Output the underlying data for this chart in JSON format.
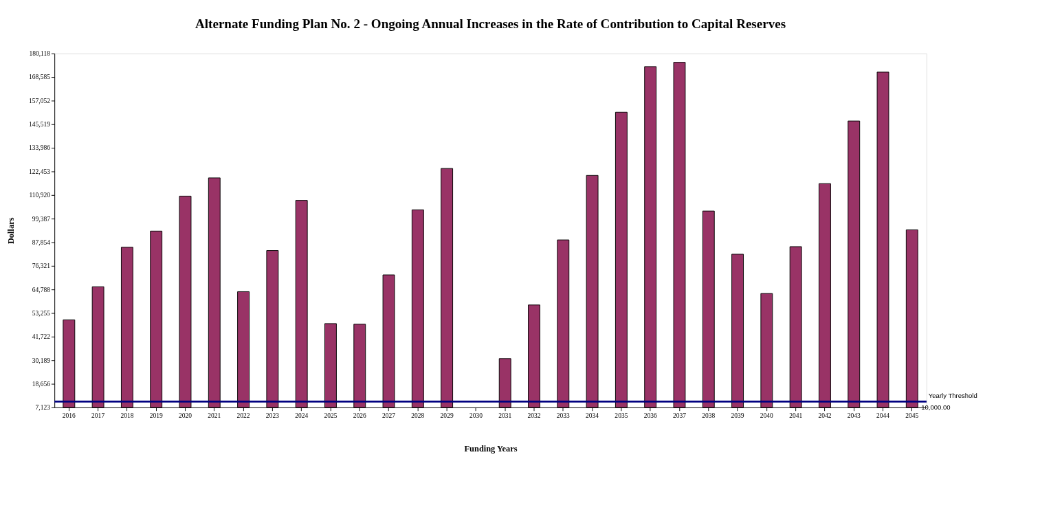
{
  "chart_data": {
    "type": "bar",
    "title": "Alternate Funding Plan No. 2 - Ongoing Annual Increases in  the Rate of Contribution to Capital Reserves",
    "xlabel": "Funding Years",
    "ylabel": "Dollars",
    "categories": [
      "2016",
      "2017",
      "2018",
      "2019",
      "2020",
      "2021",
      "2022",
      "2023",
      "2024",
      "2025",
      "2026",
      "2027",
      "2028",
      "2029",
      "2030",
      "2031",
      "2032",
      "2033",
      "2034",
      "2035",
      "2036",
      "2037",
      "2038",
      "2039",
      "2040",
      "2041",
      "2042",
      "2043",
      "2044",
      "2045"
    ],
    "values": [
      49900,
      66100,
      85400,
      93300,
      110400,
      119300,
      63700,
      83800,
      108300,
      48100,
      47800,
      71900,
      103700,
      123900,
      null,
      31000,
      57200,
      89000,
      120500,
      151400,
      173700,
      175800,
      103100,
      82000,
      62800,
      85700,
      116500,
      147100,
      171000,
      93900
    ],
    "color": "#993366",
    "ylim": [
      7123,
      180118
    ],
    "yticks": [
      {
        "value": 7123,
        "label": "7,123"
      },
      {
        "value": 18656,
        "label": "18,656"
      },
      {
        "value": 30189,
        "label": "30,189"
      },
      {
        "value": 41722,
        "label": "41,722"
      },
      {
        "value": 53255,
        "label": "53,255"
      },
      {
        "value": 64788,
        "label": "64,788"
      },
      {
        "value": 76321,
        "label": "76,321"
      },
      {
        "value": 87854,
        "label": "87,854"
      },
      {
        "value": 99387,
        "label": "99,387"
      },
      {
        "value": 110920,
        "label": "110,920"
      },
      {
        "value": 122453,
        "label": "122,453"
      },
      {
        "value": 133986,
        "label": "133,986"
      },
      {
        "value": 145519,
        "label": "145,519"
      },
      {
        "value": 157052,
        "label": "157,052"
      },
      {
        "value": 168585,
        "label": "168,585"
      },
      {
        "value": 180118,
        "label": "180,118"
      }
    ],
    "ref_lines": [
      {
        "axis": "y",
        "value": 10000,
        "label": "Yearly Threshold",
        "color": "#000080"
      }
    ],
    "annotations": [
      {
        "text": "10,000.00",
        "x": "2045",
        "y": 10000
      }
    ],
    "grid": false
  }
}
